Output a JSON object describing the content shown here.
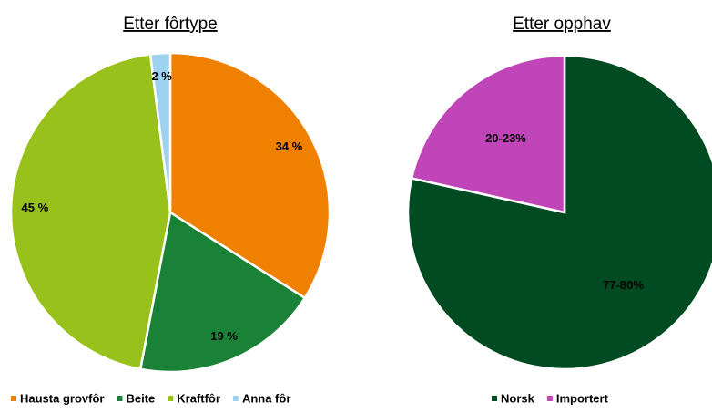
{
  "chart_data": [
    {
      "type": "pie",
      "title": "Etter fôrtype",
      "categories": [
        "Hausta grovfôr",
        "Beite",
        "Kraftfôr",
        "Anna fôr"
      ],
      "values": [
        34,
        19,
        45,
        2
      ],
      "value_labels": [
        "34 %",
        "19 %",
        "45 %",
        "2 %"
      ],
      "colors": [
        "#f08000",
        "#1a8237",
        "#99c11c",
        "#9dd3f0"
      ]
    },
    {
      "type": "pie",
      "title": "Etter opphav",
      "categories": [
        "Norsk",
        "Importert"
      ],
      "values": [
        78.5,
        21.5
      ],
      "value_labels": [
        "77-80%",
        "20-23%"
      ],
      "colors": [
        "#004b22",
        "#bf45b8"
      ]
    }
  ]
}
